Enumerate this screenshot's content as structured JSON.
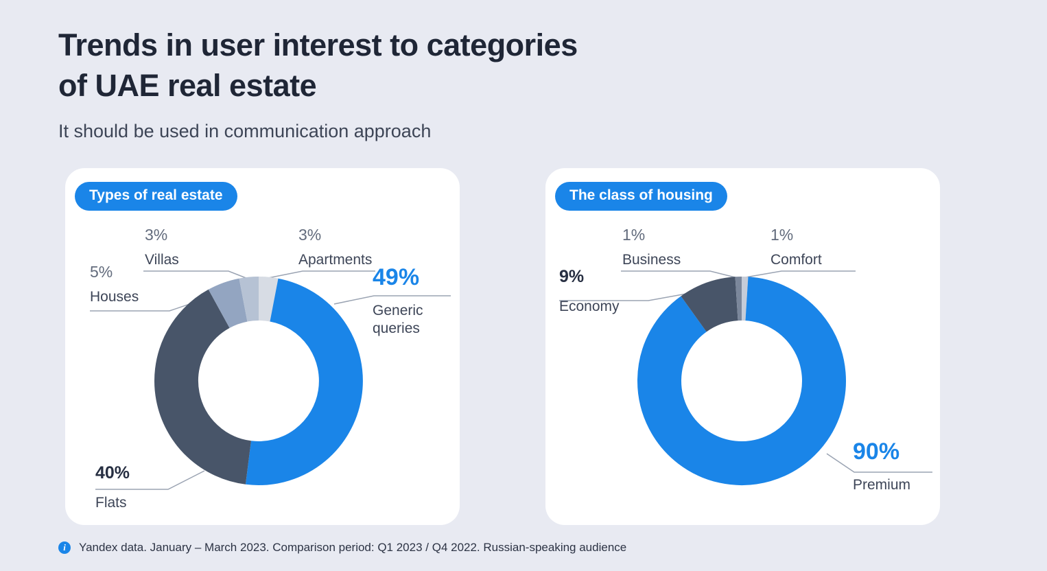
{
  "page": {
    "title_line1": "Trends in user interest to categories",
    "title_line2": "of UAE real estate",
    "subtitle": "It should be used in communication approach",
    "footnote": "Yandex data. January – March 2023. Comparison period: Q1 2023 / Q4 2022. Russian-speaking audience"
  },
  "colors": {
    "background": "#e8eaf2",
    "card": "#ffffff",
    "accent_blue": "#1a85e8",
    "dark_slate": "#485569",
    "muted_blue_gray": "#93a5c1",
    "light_gray": "#d7dce4",
    "connector_line": "#9aa3b2",
    "title_text": "#1f2636"
  },
  "chart_data": [
    {
      "type": "pie",
      "subtype": "donut",
      "title": "Types of real estate",
      "legend_position": "callouts",
      "slices": [
        {
          "label": "Apartments",
          "value": 3,
          "pct": "3%",
          "color": "#d7dce4"
        },
        {
          "label": "Generic queries",
          "value": 49,
          "pct": "49%",
          "color": "#1a85e8"
        },
        {
          "label": "Flats",
          "value": 40,
          "pct": "40%",
          "color": "#485569"
        },
        {
          "label": "Houses",
          "value": 5,
          "pct": "5%",
          "color": "#93a5c1"
        },
        {
          "label": "Villas",
          "value": 3,
          "pct": "3%",
          "color": "#b6c2d4"
        }
      ]
    },
    {
      "type": "pie",
      "subtype": "donut",
      "title": "The class of housing",
      "legend_position": "callouts",
      "slices": [
        {
          "label": "Comfort",
          "value": 1,
          "pct": "1%",
          "color": "#c6ccd8"
        },
        {
          "label": "Premium",
          "value": 90,
          "pct": "90%",
          "color": "#1a85e8"
        },
        {
          "label": "Economy",
          "value": 9,
          "pct": "9%",
          "color": "#485569"
        },
        {
          "label": "Business",
          "value": 1,
          "pct": "1%",
          "color": "#7b879b"
        }
      ]
    }
  ]
}
